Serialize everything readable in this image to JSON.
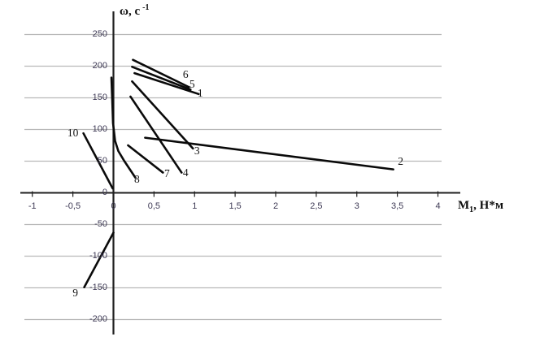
{
  "chart_data": {
    "type": "line",
    "title": "",
    "xlabel": {
      "base": "М",
      "sub": "1",
      "rest": ", Н*м"
    },
    "ylabel": {
      "base": "ω, с",
      "sup": "-1"
    },
    "x_ticks": [
      {
        "v": -1,
        "label": "-1"
      },
      {
        "v": -0.5,
        "label": "-0,5"
      },
      {
        "v": 0,
        "label": "0"
      },
      {
        "v": 0.5,
        "label": "0,5"
      },
      {
        "v": 1,
        "label": "1"
      },
      {
        "v": 1.5,
        "label": "1,5"
      },
      {
        "v": 2,
        "label": "2"
      },
      {
        "v": 2.5,
        "label": "2,5"
      },
      {
        "v": 3,
        "label": "3"
      },
      {
        "v": 3.5,
        "label": "3,5"
      },
      {
        "v": 4,
        "label": "4"
      }
    ],
    "y_ticks": [
      {
        "v": 250,
        "label": "250"
      },
      {
        "v": 200,
        "label": "200"
      },
      {
        "v": 150,
        "label": "150"
      },
      {
        "v": 100,
        "label": "100"
      },
      {
        "v": 50,
        "label": "50"
      },
      {
        "v": 0,
        "label": "0"
      },
      {
        "v": -50,
        "label": "-50"
      },
      {
        "v": -100,
        "label": "-100"
      },
      {
        "v": -150,
        "label": "-150"
      },
      {
        "v": -200,
        "label": "-200"
      }
    ],
    "xlim": [
      -1.15,
      4.3
    ],
    "ylim": [
      -215,
      285
    ],
    "grid": "horizontal-only",
    "legend": "none",
    "series": [
      {
        "name": "1",
        "points": [
          [
            0.26,
            189
          ],
          [
            1.05,
            156
          ]
        ],
        "label_at": [
          1.07,
          157
        ]
      },
      {
        "name": "2",
        "points": [
          [
            0.39,
            87
          ],
          [
            3.45,
            37
          ]
        ],
        "label_at": [
          3.54,
          49
        ]
      },
      {
        "name": "3",
        "points": [
          [
            0.23,
            176
          ],
          [
            0.98,
            70
          ]
        ],
        "label_at": [
          1.03,
          66
        ]
      },
      {
        "name": "4",
        "points": [
          [
            0.21,
            152
          ],
          [
            0.84,
            32
          ]
        ],
        "label_at": [
          0.89,
          31
        ]
      },
      {
        "name": "5",
        "points": [
          [
            0.23,
            199
          ],
          [
            0.95,
            163
          ]
        ],
        "label_at": [
          0.97,
          171
        ]
      },
      {
        "name": "6",
        "points": [
          [
            0.24,
            210
          ],
          [
            0.93,
            167
          ]
        ],
        "label_at": [
          0.89,
          186
        ]
      },
      {
        "name": "7",
        "points": [
          [
            0.18,
            75
          ],
          [
            0.61,
            32
          ]
        ],
        "label_at": [
          0.66,
          30
        ]
      },
      {
        "name": "8",
        "points": [
          [
            -0.025,
            182
          ],
          [
            -0.015,
            148
          ],
          [
            -0.005,
            110
          ],
          [
            0.02,
            82
          ],
          [
            0.06,
            66
          ],
          [
            0.13,
            51
          ],
          [
            0.27,
            24
          ]
        ],
        "label_at": [
          0.29,
          21
        ]
      },
      {
        "name": "9",
        "points": [
          [
            -0.36,
            -149
          ],
          [
            0,
            -63
          ]
        ],
        "label_at": [
          -0.47,
          -158
        ]
      },
      {
        "name": "10",
        "points": [
          [
            -0.37,
            94
          ],
          [
            -0.01,
            7
          ]
        ],
        "label_at": [
          -0.5,
          94
        ]
      }
    ],
    "colors": {
      "series_line": "#0a0a0a",
      "axis": "#1f1f1f",
      "grid": "#b9b9b9",
      "tick_label": "#3e3a55"
    }
  }
}
